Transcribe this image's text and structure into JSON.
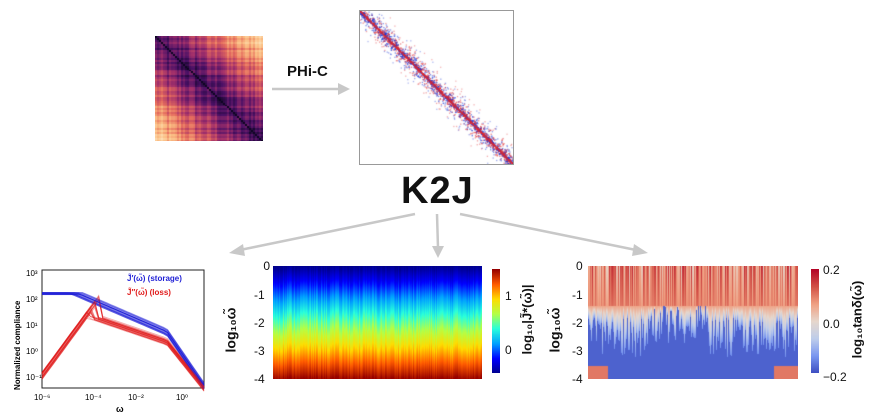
{
  "flow": {
    "arrow_label": "PHi-C",
    "model_label": "K2J"
  },
  "panels": {
    "contact_map": {
      "name": "hi-c-contact-map",
      "palette": [
        "#0d0621",
        "#4a1066",
        "#a3306b",
        "#e56b5d",
        "#fbbd82",
        "#fde9c3"
      ]
    },
    "normalized_k": {
      "name": "normalized-k-matrix",
      "colors": {
        "pos": "#1836d6",
        "neg": "#e0262b",
        "bg": "#ffffff"
      }
    }
  },
  "compliance_plot": {
    "ylabel": "Normalized compliance",
    "xlabel": "ω",
    "xtick_labels": [
      "10⁻⁶",
      "10⁻⁴",
      "10⁻²",
      "10⁰"
    ],
    "ytick_labels": [
      "10³",
      "10²",
      "10¹",
      "10⁰",
      "10⁻¹"
    ],
    "legend": [
      {
        "label": "J̃′(ω̃) (storage)",
        "color": "#1f1fd6"
      },
      {
        "label": "J̃″(ω̃) (loss)",
        "color": "#e01b1b"
      }
    ]
  },
  "heatmap_jstar": {
    "ylabel": "log₁₀ω̃",
    "yticks": [
      "0",
      "-1",
      "-2",
      "-3",
      "-4"
    ],
    "colorbar_label": "log₁₀|J̃*(ω̃)|",
    "colorbar_ticks": [
      "1",
      "0"
    ],
    "colormap": "jet"
  },
  "heatmap_tand": {
    "ylabel": "log₁₀ω̃",
    "yticks": [
      "0",
      "-1",
      "-2",
      "-3",
      "-4"
    ],
    "colorbar_label": "log₁₀tanδ(ω̃)",
    "colorbar_ticks": [
      "0.2",
      "0.0",
      "−0.2"
    ],
    "colormap": "coolwarm"
  }
}
